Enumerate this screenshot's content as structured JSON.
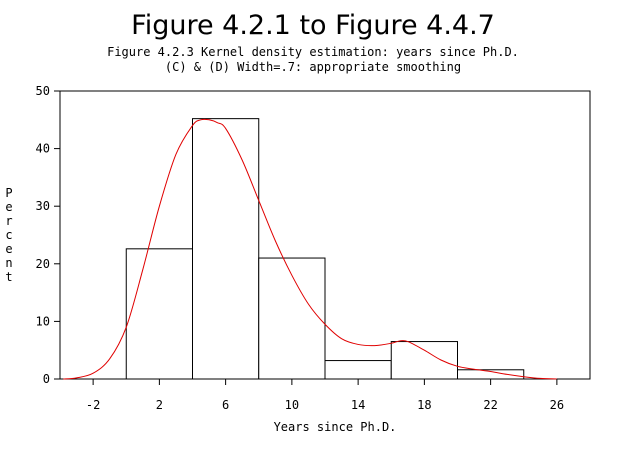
{
  "chart_data": {
    "type": "bar",
    "title": "Figure 4.2.1 to Figure 4.4.7",
    "subtitle_lines": [
      "Figure 4.2.3 Kernel density estimation: years since Ph.D.",
      "(C) & (D) Width=.7: appropriate smoothing"
    ],
    "xlabel": "Years since Ph.D.",
    "ylabel": "Percent",
    "xlim": [
      -4,
      28
    ],
    "ylim": [
      0,
      50
    ],
    "x_ticks": [
      -2,
      2,
      6,
      10,
      14,
      18,
      22,
      26
    ],
    "y_ticks": [
      0,
      10,
      20,
      30,
      40,
      50
    ],
    "histogram": {
      "bins": [
        {
          "x0": 0,
          "x1": 4,
          "value": 22.6
        },
        {
          "x0": 4,
          "x1": 8,
          "value": 45.2
        },
        {
          "x0": 8,
          "x1": 12,
          "value": 21.0
        },
        {
          "x0": 12,
          "x1": 16,
          "value": 3.2
        },
        {
          "x0": 16,
          "x1": 20,
          "value": 6.5
        },
        {
          "x0": 20,
          "x1": 24,
          "value": 1.6
        }
      ],
      "fill": "#ffffff",
      "stroke": "#000000"
    },
    "density_curve": {
      "color": "#e00000",
      "x": [
        -3.8,
        -3,
        -2,
        -1,
        0,
        1,
        2,
        3,
        4,
        4.5,
        5,
        5.5,
        6,
        7,
        8,
        9,
        10,
        11,
        12,
        13,
        14,
        15,
        16,
        16.5,
        17,
        18,
        19,
        20,
        21,
        22,
        23,
        24,
        25,
        26
      ],
      "y": [
        0,
        0.2,
        1.0,
        3.5,
        9,
        19,
        30,
        39,
        44,
        45,
        45,
        44.5,
        43.5,
        38,
        31,
        24,
        18,
        13,
        9.5,
        7,
        6,
        5.8,
        6.2,
        6.6,
        6.5,
        5,
        3.3,
        2.2,
        1.7,
        1.3,
        0.8,
        0.4,
        0.1,
        0
      ]
    },
    "grid": false,
    "legend": "none"
  }
}
